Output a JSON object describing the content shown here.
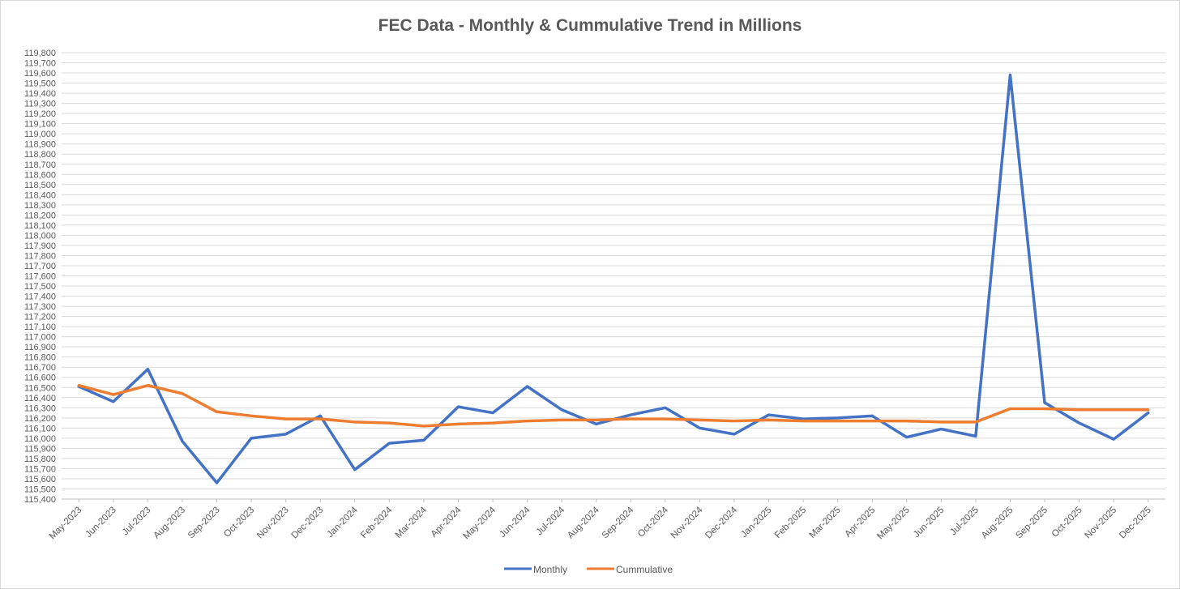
{
  "chart_data": {
    "type": "line",
    "title": "FEC Data - Monthly & Cummulative Trend in Millions",
    "xlabel": "",
    "ylabel": "",
    "ylim": [
      115400,
      119800
    ],
    "ytick_step": 100,
    "grid": true,
    "legend_position": "bottom-center",
    "categories": [
      "May-2023",
      "Jun-2023",
      "Jul-2023",
      "Aug-2023",
      "Sep-2023",
      "Oct-2023",
      "Nov-2023",
      "Dec-2023",
      "Jan-2024",
      "Feb-2024",
      "Mar-2024",
      "Apr-2024",
      "May-2024",
      "Jun-2024",
      "Jul-2024",
      "Aug-2024",
      "Sep-2024",
      "Oct-2024",
      "Nov-2024",
      "Dec-2024",
      "Jan-2025",
      "Feb-2025",
      "Mar-2025",
      "Apr-2025",
      "May-2025",
      "Jun-2025",
      "Jul-2025",
      "Aug-2025",
      "Sep-2025",
      "Oct-2025",
      "Nov-2025",
      "Dec-2025"
    ],
    "series": [
      {
        "name": "Monthly",
        "color": "#4472C4",
        "values": [
          116510,
          116360,
          116680,
          115970,
          115560,
          116000,
          116040,
          116220,
          115690,
          115950,
          115980,
          116310,
          116250,
          116510,
          116280,
          116140,
          116230,
          116300,
          116100,
          116040,
          116230,
          116190,
          116200,
          116220,
          116010,
          116090,
          116020,
          119580,
          116350,
          116150,
          115990,
          116250
        ]
      },
      {
        "name": "Cummulative",
        "color": "#ED7D31",
        "values": [
          116520,
          116430,
          116520,
          116440,
          116260,
          116220,
          116190,
          116190,
          116160,
          116150,
          116120,
          116140,
          116150,
          116170,
          116180,
          116180,
          116190,
          116190,
          116180,
          116170,
          116180,
          116170,
          116170,
          116170,
          116170,
          116160,
          116160,
          116290,
          116290,
          116280,
          116280,
          116280
        ]
      }
    ]
  }
}
